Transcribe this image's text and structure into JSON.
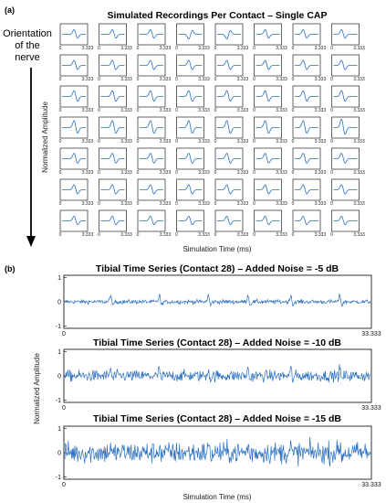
{
  "panel_a": {
    "label": "(a)",
    "title": "Simulated Recordings Per Contact – Single CAP",
    "side_label_line1": "Orientation",
    "side_label_line2": "of the",
    "side_label_line3": "nerve",
    "ylabel": "Normalized Amplitude",
    "xlabel": "Simulation Time (ms)",
    "tick_start": "0",
    "tick_end": "3.333"
  },
  "panel_b": {
    "label": "(b)",
    "ylabel": "Normalized Amplitude",
    "xlabel": "Simulation Time (ms)"
  },
  "colors": {
    "trace": "#2a6fc0",
    "axis": "#000000"
  },
  "chart_data": [
    {
      "type": "line",
      "layout": "grid 7 rows x 8 columns of small panels",
      "title": "Simulated Recordings Per Contact – Single CAP",
      "xlabel": "Simulation Time (ms)",
      "ylabel": "Normalized Amplitude",
      "xlim": [
        0,
        3.333
      ],
      "x_ticks": [
        "0",
        "3.333"
      ],
      "rows": 7,
      "columns": 8,
      "column_shape_offsets": [
        0.52,
        0.5,
        0.47,
        0.45,
        0.42,
        0.4,
        0.37,
        0.35
      ],
      "row_amplitudes": [
        0.6,
        0.65,
        0.75,
        0.9,
        0.7,
        0.65,
        0.6
      ]
    },
    {
      "type": "line",
      "title": "Tibial Time Series (Contact 28) – Added Noise = -5 dB",
      "xlim": [
        0,
        33.333
      ],
      "ylim": [
        -1,
        1
      ],
      "x_ticks": [
        "0",
        "33.333"
      ],
      "y_ticks": [
        "1",
        "0",
        "-1"
      ],
      "noise_amplitude": 0.08,
      "spike_amplitude": 0.3
    },
    {
      "type": "line",
      "title": "Tibial Time Series (Contact 28) – Added Noise = -10 dB",
      "xlim": [
        0,
        33.333
      ],
      "ylim": [
        -1,
        1
      ],
      "x_ticks": [
        "0",
        "33.333"
      ],
      "y_ticks": [
        "1",
        "0",
        "-1"
      ],
      "noise_amplitude": 0.22,
      "spike_amplitude": 0.3
    },
    {
      "type": "line",
      "title": "Tibial Time Series (Contact 28) – Added Noise = -15 dB",
      "xlim": [
        0,
        33.333
      ],
      "ylim": [
        -1,
        1
      ],
      "x_ticks": [
        "0",
        "33.333"
      ],
      "y_ticks": [
        "1",
        "0",
        "-1"
      ],
      "noise_amplitude": 0.42,
      "spike_amplitude": 0.3
    }
  ]
}
